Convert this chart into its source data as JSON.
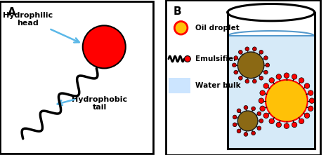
{
  "bg_color": "#ffffff",
  "border_color": "#000000",
  "panel_A_label": "A",
  "panel_B_label": "B",
  "head_color": "#ff0000",
  "head_outline": "#000000",
  "tail_color": "#000000",
  "arrow_color": "#5bb8e8",
  "text_color": "#000000",
  "hydrophilic_head_text": "Hydrophilic\nhead",
  "hydrophobic_tail_text": "Hydrophobic\ntail",
  "oil_droplet_text": "Oil droplet",
  "emulsifier_text": "Emulsifier",
  "water_bulk_text": "Water bulk",
  "oil_color_inner": "#ffc107",
  "oil_color_outer": "#ff0000",
  "water_color": "#d6eaf8",
  "water_line_color": "#5599cc",
  "glass_color": "#000000",
  "legend_box_color": "#cce5ff",
  "dark_oil_color": "#8B6914",
  "dark_shell_color": "#1a1a1a"
}
